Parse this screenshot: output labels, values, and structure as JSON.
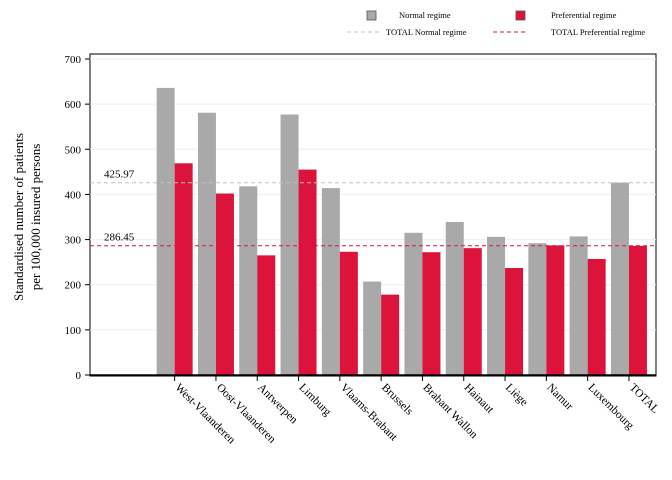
{
  "colors": {
    "normal": "#a9a9a9",
    "preferential": "#dc143c",
    "normal_ref_line": "#c0c0c0",
    "preferential_ref_line": "#dc143c",
    "frame": "#000000",
    "grid": "#eeeeee"
  },
  "chart_data": {
    "type": "bar",
    "title": "",
    "xlabel": "",
    "ylabel_lines": [
      "Standardised number of patients",
      "per 100,000 insured persons"
    ],
    "ylim": [
      0,
      700
    ],
    "yticks": [
      0,
      100,
      200,
      300,
      400,
      500,
      600,
      700
    ],
    "grid": "horizontal, light",
    "legend_position": "top-right",
    "categories": [
      "West-Vlaanderen",
      "Oost-Vlaanderen",
      "Antwerpen",
      "Limburg",
      "Vlaams-Brabant",
      "Brussels",
      "Brabant Wallon",
      "Hainaut",
      "Liège",
      "Namur",
      "Luxembourg",
      "TOTAL"
    ],
    "series": [
      {
        "name": "Normal regime",
        "color_key": "normal",
        "values": [
          636,
          581,
          418,
          577,
          414,
          207,
          315,
          339,
          306,
          292,
          307,
          426
        ]
      },
      {
        "name": "Preferential regime",
        "color_key": "preferential",
        "values": [
          469,
          402,
          265,
          455,
          273,
          178,
          272,
          281,
          237,
          287,
          257,
          286
        ]
      }
    ],
    "reference_lines": [
      {
        "name": "TOTAL Normal regime",
        "value": 425.97,
        "label": "425.97",
        "color_key": "normal_ref_line"
      },
      {
        "name": "TOTAL Preferential regime",
        "value": 286.45,
        "label": "286.45",
        "color_key": "preferential_ref_line"
      }
    ]
  }
}
